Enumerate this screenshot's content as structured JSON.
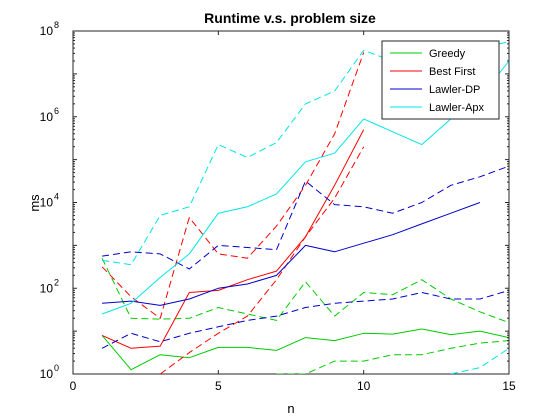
{
  "chart_data": {
    "type": "line",
    "title": "Runtime v.s. problem size",
    "xlabel": "n",
    "ylabel": "ms",
    "xlim": [
      0,
      15
    ],
    "ylim_log10": [
      0,
      8
    ],
    "yscale": "log",
    "grid": false,
    "legend_position": "top-right",
    "x_ticks": [
      0,
      5,
      10,
      15
    ],
    "y_ticks": [
      {
        "exp": 0,
        "base": "10",
        "power": "0"
      },
      {
        "exp": 2,
        "base": "10",
        "power": "2"
      },
      {
        "exp": 4,
        "base": "10",
        "power": "4"
      },
      {
        "exp": 6,
        "base": "10",
        "power": "6"
      },
      {
        "exp": 8,
        "base": "10",
        "power": "8"
      }
    ],
    "legend": [
      {
        "name": "Greedy",
        "color": "#00cc00"
      },
      {
        "name": "Best First",
        "color": "#ff0000"
      },
      {
        "name": "Lawler-DP",
        "color": "#0000cc"
      },
      {
        "name": "Lawler-Apx",
        "color": "#00e5e5"
      }
    ],
    "series": [
      {
        "name": "Greedy",
        "style": "solid",
        "color": "#00cc00",
        "x": [
          1,
          2,
          3,
          4,
          5,
          6,
          7,
          8,
          9,
          10,
          11,
          12,
          13,
          14,
          15
        ],
        "log10_y": [
          0.9,
          0.1,
          0.45,
          0.38,
          0.62,
          0.62,
          0.55,
          0.85,
          0.78,
          0.95,
          0.93,
          1.05,
          0.92,
          1.0,
          0.85
        ]
      },
      {
        "name": "Greedy",
        "style": "dashed",
        "color": "#00cc00",
        "x": [
          1,
          2,
          3,
          4,
          5,
          6,
          7,
          8,
          9,
          10,
          11,
          12,
          13,
          14,
          15
        ],
        "log10_y": [
          2.7,
          1.3,
          1.28,
          1.3,
          1.55,
          1.4,
          1.25,
          2.15,
          1.35,
          1.9,
          1.85,
          2.2,
          1.75,
          1.45,
          1.2
        ]
      },
      {
        "name": "Greedy",
        "style": "dashed",
        "color": "#00cc00",
        "x": [
          7,
          8,
          9,
          10,
          11,
          12,
          13,
          14,
          15
        ],
        "log10_y": [
          0.0,
          0.0,
          0.3,
          0.3,
          0.45,
          0.45,
          0.6,
          0.72,
          0.78
        ]
      },
      {
        "name": "Best First",
        "style": "solid",
        "color": "#ff0000",
        "x": [
          1,
          2,
          3,
          4,
          5,
          6,
          7,
          8,
          9,
          10
        ],
        "log10_y": [
          0.9,
          0.6,
          0.65,
          1.9,
          1.95,
          2.2,
          2.4,
          3.2,
          4.4,
          5.7
        ]
      },
      {
        "name": "Best First",
        "style": "dashed",
        "color": "#ff0000",
        "x": [
          1,
          2,
          3,
          4,
          5,
          6,
          7,
          8,
          9,
          10
        ],
        "log10_y": [
          2.5,
          1.8,
          1.3,
          3.65,
          2.8,
          2.7,
          3.45,
          4.4,
          5.6,
          7.5
        ]
      },
      {
        "name": "Best First",
        "style": "dashed",
        "color": "#ff0000",
        "x": [
          3,
          4,
          5,
          6,
          7,
          8,
          9,
          10
        ],
        "log10_y": [
          0.0,
          0.5,
          0.95,
          1.35,
          2.2,
          3.2,
          4.1,
          5.3
        ]
      },
      {
        "name": "Lawler-DP",
        "style": "solid",
        "color": "#0000cc",
        "x": [
          1,
          2,
          3,
          4,
          5,
          6,
          7,
          8,
          9,
          10,
          11,
          12,
          13,
          14
        ],
        "log10_y": [
          1.65,
          1.7,
          1.6,
          1.75,
          2.0,
          2.1,
          2.3,
          3.0,
          2.85,
          3.05,
          3.25,
          3.5,
          3.75,
          4.0
        ]
      },
      {
        "name": "Lawler-DP",
        "style": "dashed",
        "color": "#0000cc",
        "x": [
          1,
          2,
          3,
          4,
          5,
          6,
          7,
          8,
          9,
          10,
          11,
          12,
          13,
          14,
          15
        ],
        "log10_y": [
          2.75,
          2.85,
          2.8,
          2.45,
          3.0,
          2.95,
          2.9,
          4.5,
          3.95,
          3.9,
          3.75,
          4.0,
          4.4,
          4.6,
          4.85
        ]
      },
      {
        "name": "Lawler-DP",
        "style": "dashed",
        "color": "#0000cc",
        "x": [
          1,
          2,
          3,
          4,
          5,
          6,
          7,
          8,
          9,
          10,
          11,
          12,
          13,
          14,
          15
        ],
        "log10_y": [
          0.6,
          0.95,
          0.75,
          0.95,
          1.1,
          1.25,
          1.35,
          1.55,
          1.65,
          1.7,
          1.75,
          1.9,
          1.75,
          1.75,
          1.95
        ]
      },
      {
        "name": "Lawler-Apx",
        "style": "solid",
        "color": "#00e5e5",
        "x": [
          1,
          2,
          3,
          4,
          5,
          6,
          7,
          8,
          9,
          10,
          11,
          12,
          13,
          14,
          15
        ],
        "log10_y": [
          1.4,
          1.65,
          2.25,
          2.8,
          3.75,
          3.9,
          4.2,
          4.95,
          5.15,
          5.95,
          5.65,
          5.35,
          5.95,
          6.45,
          7.3
        ]
      },
      {
        "name": "Lawler-Apx",
        "style": "dashed",
        "color": "#00e5e5",
        "x": [
          1,
          2,
          3,
          4,
          5,
          6,
          7,
          8,
          9,
          10,
          11,
          12,
          13,
          14,
          15
        ],
        "log10_y": [
          2.65,
          2.55,
          3.7,
          3.9,
          5.35,
          5.05,
          5.4,
          6.3,
          6.6,
          7.55,
          7.3,
          6.95,
          7.3,
          7.6,
          7.75
        ]
      },
      {
        "name": "Lawler-Apx",
        "style": "dashed",
        "color": "#00e5e5",
        "x": [
          13,
          14,
          15
        ],
        "log10_y": [
          0.0,
          0.15,
          0.6
        ]
      }
    ]
  }
}
